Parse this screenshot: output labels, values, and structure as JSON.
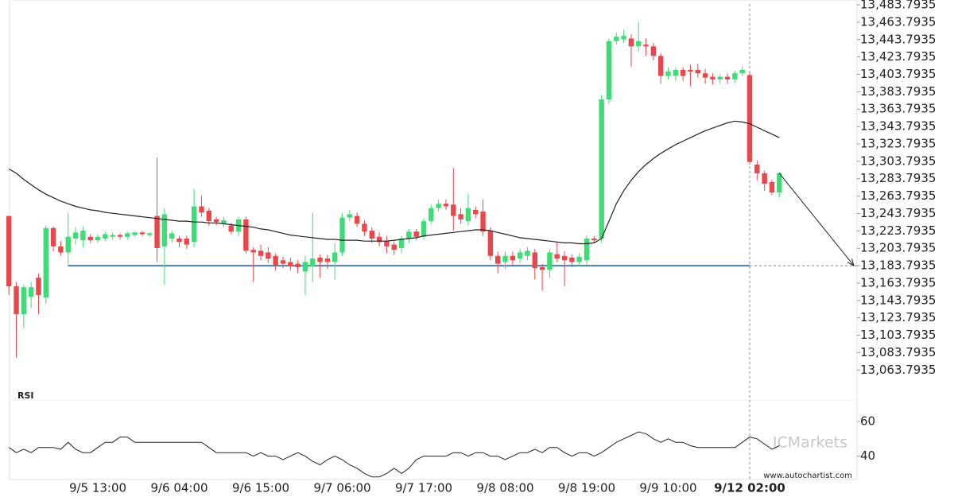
{
  "chart_data": {
    "type": "candlestick",
    "categories": [
      null,
      null,
      null,
      null,
      null,
      null,
      null,
      null,
      null,
      null,
      null,
      null,
      "9/5 13:00",
      null,
      null,
      null,
      null,
      null,
      null,
      null,
      null,
      null,
      null,
      "9/6 04:00",
      null,
      null,
      null,
      null,
      null,
      null,
      null,
      null,
      null,
      null,
      "9/6 15:00",
      null,
      null,
      null,
      null,
      null,
      null,
      null,
      null,
      null,
      null,
      "9/7 06:00",
      null,
      null,
      null,
      null,
      null,
      null,
      null,
      null,
      null,
      null,
      "9/7 17:00",
      null,
      null,
      null,
      null,
      null,
      null,
      null,
      null,
      null,
      null,
      "9/8 08:00",
      null,
      null,
      null,
      null,
      null,
      null,
      null,
      null,
      null,
      null,
      "9/8 19:00",
      null,
      null,
      null,
      null,
      null,
      null,
      null,
      null,
      null,
      null,
      "9/9 10:00",
      null,
      null,
      null,
      null,
      null,
      null,
      null,
      null,
      null,
      null,
      "9/12 02:00",
      null,
      null,
      null,
      null
    ],
    "open": [
      13241,
      13160,
      13128,
      13148,
      13170,
      13147,
      13227,
      13206,
      13199,
      13215,
      13213,
      13217,
      13213,
      13215,
      13217,
      13219,
      13217,
      13219,
      13222,
      13219,
      13241,
      13206,
      13215,
      13215,
      13215,
      13211,
      13252,
      13247,
      13237,
      13232,
      13230,
      13223,
      13237,
      13202,
      13201,
      13199,
      13195,
      13190,
      13188,
      13186,
      13177,
      13183,
      13193,
      13192,
      13188,
      13199,
      13239,
      13241,
      13232,
      13224,
      13217,
      13212,
      13208,
      13204,
      13215,
      13223,
      13217,
      13235,
      13250,
      13255,
      13254,
      13243,
      13235,
      13248,
      13246,
      13224,
      13195,
      13188,
      13195,
      13192,
      13195,
      13199,
      13182,
      13179,
      13197,
      13195,
      13193,
      13188,
      13190,
      13215,
      13215,
      13375,
      13442,
      13444,
      13445,
      13436,
      13438,
      13436,
      13425,
      13402,
      13402,
      13409,
      13409,
      13409,
      13405,
      13401,
      13398,
      13401,
      13398,
      13405,
      13403,
      13300,
      13290,
      13280,
      13268
    ],
    "high": [
      13241,
      13165,
      13162,
      13165,
      13175,
      13230,
      13229,
      13212,
      13245,
      13228,
      13229,
      13220,
      13220,
      13223,
      13222,
      13221,
      13223,
      13223,
      13224,
      13222,
      13308,
      13250,
      13224,
      13218,
      13218,
      13272,
      13264,
      13250,
      13240,
      13240,
      13233,
      13240,
      13240,
      13205,
      13208,
      13205,
      13198,
      13194,
      13193,
      13190,
      13195,
      13245,
      13197,
      13196,
      13210,
      13244,
      13248,
      13245,
      13236,
      13228,
      13222,
      13218,
      13212,
      13218,
      13226,
      13226,
      13238,
      13254,
      13260,
      13260,
      13296,
      13250,
      13267,
      13252,
      13260,
      13228,
      13200,
      13200,
      13200,
      13203,
      13205,
      13203,
      13186,
      13203,
      13211,
      13200,
      13197,
      13198,
      13218,
      13218,
      13380,
      13445,
      13452,
      13455,
      13450,
      13464,
      13445,
      13440,
      13428,
      13412,
      13412,
      13412,
      13415,
      13416,
      13410,
      13405,
      13404,
      13405,
      13408,
      13413,
      13406,
      13305,
      13293,
      13283,
      13292
    ],
    "low": [
      13150,
      13078,
      13112,
      13135,
      13128,
      13140,
      13200,
      13195,
      13183,
      13208,
      13205,
      13210,
      13210,
      13212,
      13214,
      13214,
      13214,
      13217,
      13218,
      13217,
      13188,
      13162,
      13210,
      13205,
      13203,
      13205,
      13240,
      13230,
      13230,
      13228,
      13220,
      13218,
      13198,
      13165,
      13190,
      13187,
      13178,
      13181,
      13178,
      13175,
      13150,
      13165,
      13170,
      13180,
      13168,
      13195,
      13235,
      13228,
      13218,
      13210,
      13206,
      13198,
      13196,
      13198,
      13210,
      13213,
      13214,
      13232,
      13246,
      13248,
      13224,
      13232,
      13230,
      13238,
      13218,
      13190,
      13175,
      13180,
      13185,
      13187,
      13190,
      13168,
      13155,
      13170,
      13188,
      13160,
      13182,
      13183,
      13185,
      13210,
      13210,
      13370,
      13438,
      13440,
      13412,
      13430,
      13425,
      13420,
      13393,
      13398,
      13396,
      13396,
      13390,
      13400,
      13393,
      13392,
      13393,
      13393,
      13394,
      13402,
      13300,
      13282,
      13270,
      13265,
      13262
    ],
    "close": [
      13160,
      13128,
      13159,
      13159,
      13150,
      13227,
      13206,
      13199,
      13217,
      13222,
      13224,
      13213,
      13217,
      13220,
      13219,
      13217,
      13221,
      13222,
      13220,
      13221,
      13204,
      13243,
      13221,
      13211,
      13208,
      13252,
      13245,
      13235,
      13234,
      13236,
      13223,
      13237,
      13201,
      13199,
      13195,
      13192,
      13184,
      13186,
      13183,
      13182,
      13188,
      13192,
      13188,
      13188,
      13199,
      13239,
      13243,
      13232,
      13223,
      13215,
      13211,
      13206,
      13202,
      13215,
      13223,
      13217,
      13235,
      13250,
      13255,
      13252,
      13241,
      13237,
      13250,
      13243,
      13223,
      13195,
      13186,
      13195,
      13190,
      13199,
      13201,
      13181,
      13179,
      13199,
      13192,
      13190,
      13188,
      13194,
      13215,
      13213,
      13375,
      13442,
      13447,
      13448,
      13436,
      13442,
      13436,
      13425,
      13402,
      13407,
      13409,
      13402,
      13407,
      13405,
      13400,
      13398,
      13401,
      13398,
      13405,
      13409,
      13303,
      13290,
      13278,
      13268,
      13290
    ],
    "up_color": "#3ddc76",
    "down_color": "#e8474c",
    "ma": {
      "color": "#222222",
      "values": [
        13295,
        13290,
        13283,
        13277,
        13271,
        13266,
        13262,
        13258,
        13255,
        13252,
        13250,
        13248,
        13247,
        13245,
        13244,
        13243,
        13242,
        13241,
        13240,
        13239,
        13238,
        13237,
        13236,
        13235,
        13235,
        13234,
        13234,
        13233,
        13233,
        13232,
        13231,
        13230,
        13229,
        13228,
        13226,
        13225,
        13223,
        13221,
        13219,
        13218,
        13217,
        13216,
        13215,
        13214,
        13214,
        13213,
        13213,
        13213,
        13212,
        13212,
        13212,
        13212,
        13213,
        13214,
        13215,
        13216,
        13218,
        13219,
        13220,
        13221,
        13222,
        13223,
        13224,
        13225,
        13225,
        13224,
        13222,
        13220,
        13218,
        13216,
        13215,
        13214,
        13213,
        13212,
        13211,
        13210,
        13210,
        13209,
        13209,
        13210,
        13215,
        13235,
        13255,
        13270,
        13282,
        13292,
        13300,
        13307,
        13313,
        13318,
        13323,
        13327,
        13331,
        13335,
        13339,
        13342,
        13345,
        13348,
        13350,
        13349,
        13347,
        13343,
        13339,
        13335,
        13331
      ]
    },
    "level": 13183.7935,
    "level_color": "#4d7fb3",
    "ylim": [
      13059.5,
      13489.3
    ],
    "yticks": [
      {
        "value": 13483.7935,
        "label": "13,483.7935"
      },
      {
        "value": 13463.7935,
        "label": "13,463.7935"
      },
      {
        "value": 13443.7935,
        "label": "13,443.7935"
      },
      {
        "value": 13423.7935,
        "label": "13,423.7935"
      },
      {
        "value": 13403.7935,
        "label": "13,403.7935"
      },
      {
        "value": 13383.7935,
        "label": "13,383.7935"
      },
      {
        "value": 13363.7935,
        "label": "13,363.7935"
      },
      {
        "value": 13343.7935,
        "label": "13,343.7935"
      },
      {
        "value": 13323.7935,
        "label": "13,323.7935"
      },
      {
        "value": 13303.7935,
        "label": "13,303.7935"
      },
      {
        "value": 13283.7935,
        "label": "13,283.7935"
      },
      {
        "value": 13263.7935,
        "label": "13,263.7935"
      },
      {
        "value": 13243.7935,
        "label": "13,243.7935"
      },
      {
        "value": 13223.7935,
        "label": "13,223.7935"
      },
      {
        "value": 13203.7935,
        "label": "13,203.7935"
      },
      {
        "value": 13183.7935,
        "label": "13,183.7935"
      },
      {
        "value": 13163.7935,
        "label": "13,163.7935"
      },
      {
        "value": 13143.7935,
        "label": "13,143.7935"
      },
      {
        "value": 13123.7935,
        "label": "13,123.7935"
      },
      {
        "value": 13103.7935,
        "label": "13,103.7935"
      },
      {
        "value": 13083.7935,
        "label": "13,083.7935"
      },
      {
        "value": 13063.7935,
        "label": "13,063.7935"
      }
    ],
    "rsi": {
      "label": "RSI",
      "color": "#222222",
      "ylim": [
        26.5,
        71.5
      ],
      "yticks": [
        60,
        40
      ],
      "values": [
        45,
        42,
        44,
        42,
        45,
        45,
        45,
        44,
        48,
        44,
        42,
        42,
        45,
        48,
        48,
        51,
        51,
        48,
        48,
        48,
        48,
        48,
        48,
        48,
        48,
        48,
        48,
        45,
        42,
        42,
        42,
        42,
        42,
        40,
        42,
        40,
        40,
        38,
        40,
        42,
        40,
        37,
        35,
        38,
        40,
        38,
        35,
        33,
        30,
        28,
        28,
        30,
        33,
        30,
        33,
        38,
        40,
        40,
        40,
        40,
        42,
        42,
        40,
        42,
        42,
        40,
        40,
        38,
        40,
        42,
        42,
        44,
        42,
        45,
        45,
        42,
        40,
        42,
        42,
        40,
        42,
        45,
        48,
        50,
        52,
        54,
        53,
        50,
        48,
        50,
        48,
        48,
        46,
        45,
        45,
        45,
        45,
        45,
        45,
        48,
        51,
        50,
        47,
        44,
        46
      ]
    },
    "watermark": "ICMarkets",
    "footer": "www.autochartist.com"
  }
}
